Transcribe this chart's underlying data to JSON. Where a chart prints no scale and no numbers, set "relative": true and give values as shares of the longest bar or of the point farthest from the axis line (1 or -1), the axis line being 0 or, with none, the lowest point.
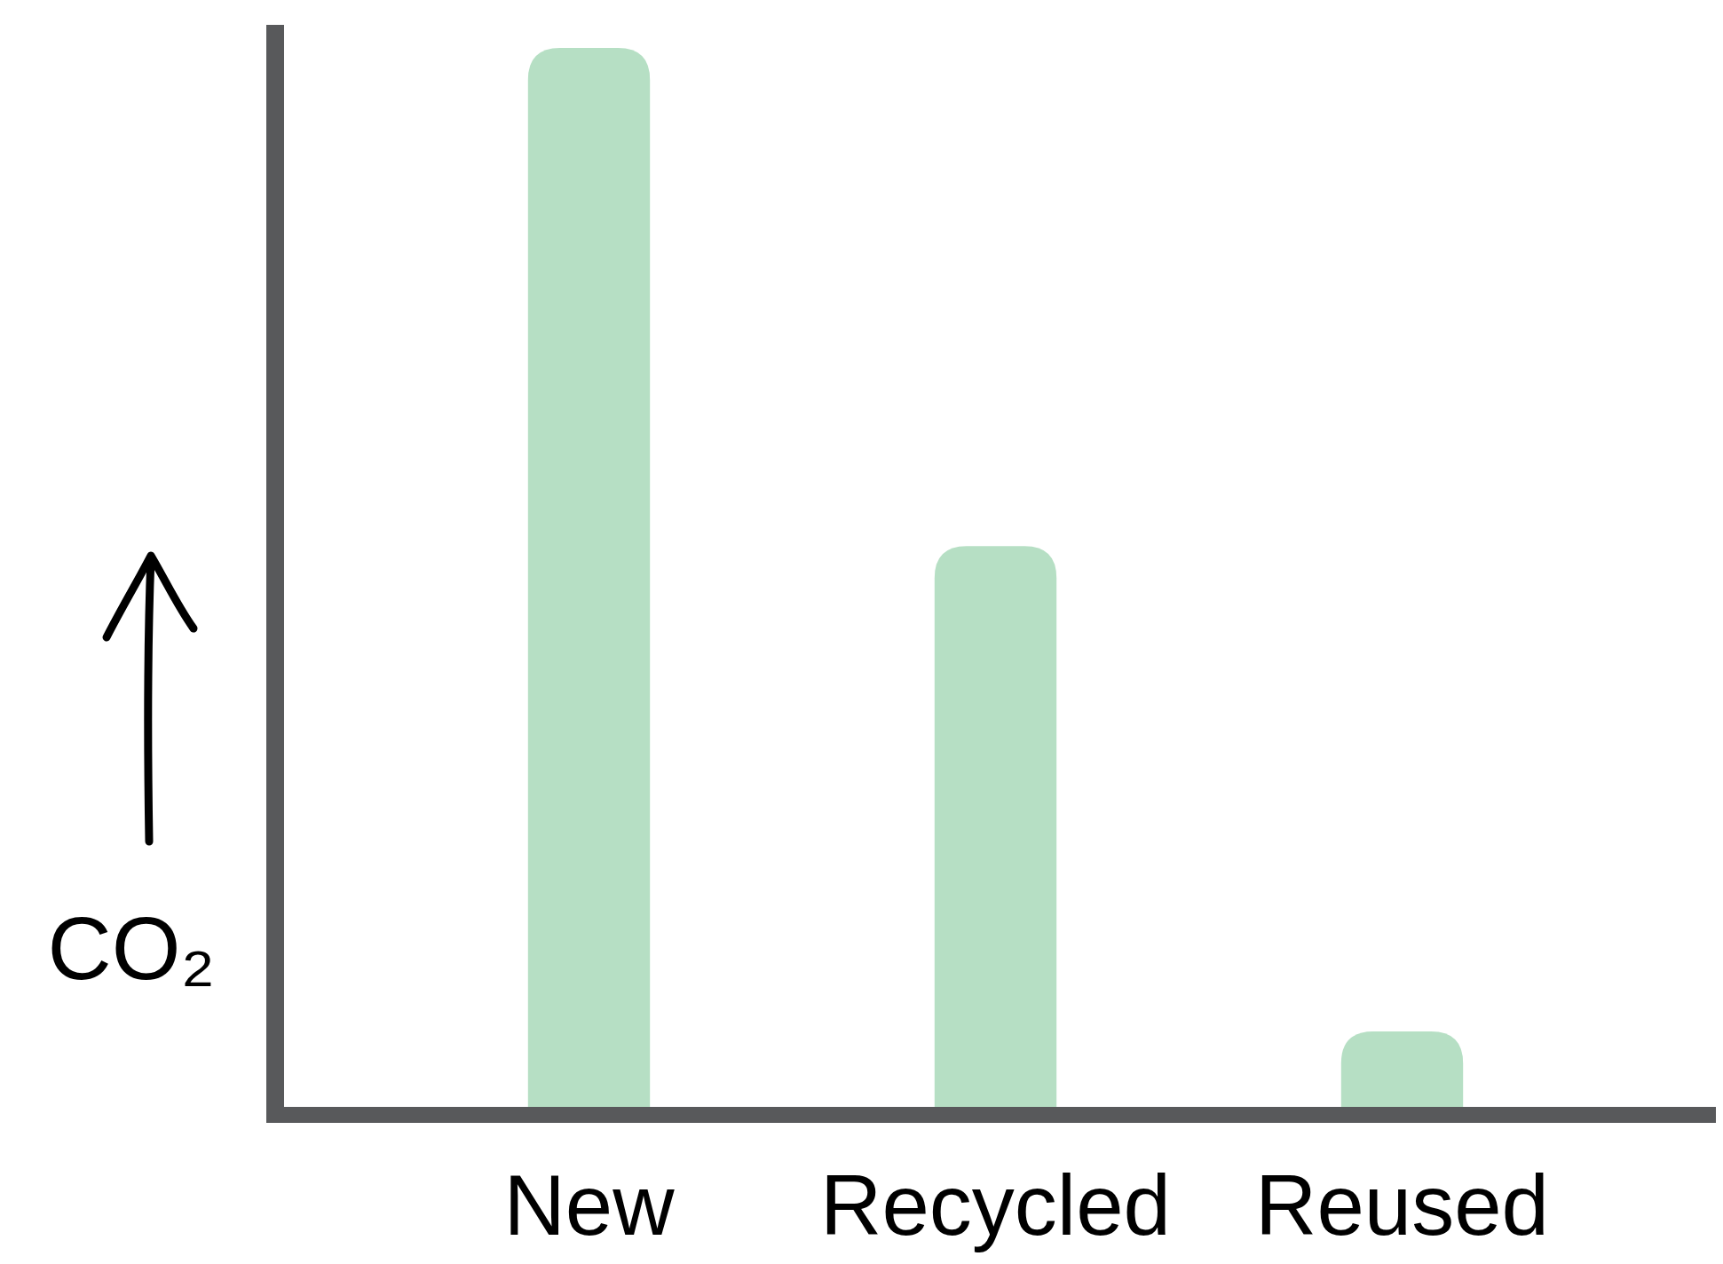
{
  "chart_data": {
    "type": "bar",
    "relative": true,
    "ylabel": "CO₂",
    "categories": [
      "New",
      "Recycled",
      "Reused"
    ],
    "values": [
      1,
      0.53,
      0.072
    ],
    "color": "#b6dfc4"
  }
}
